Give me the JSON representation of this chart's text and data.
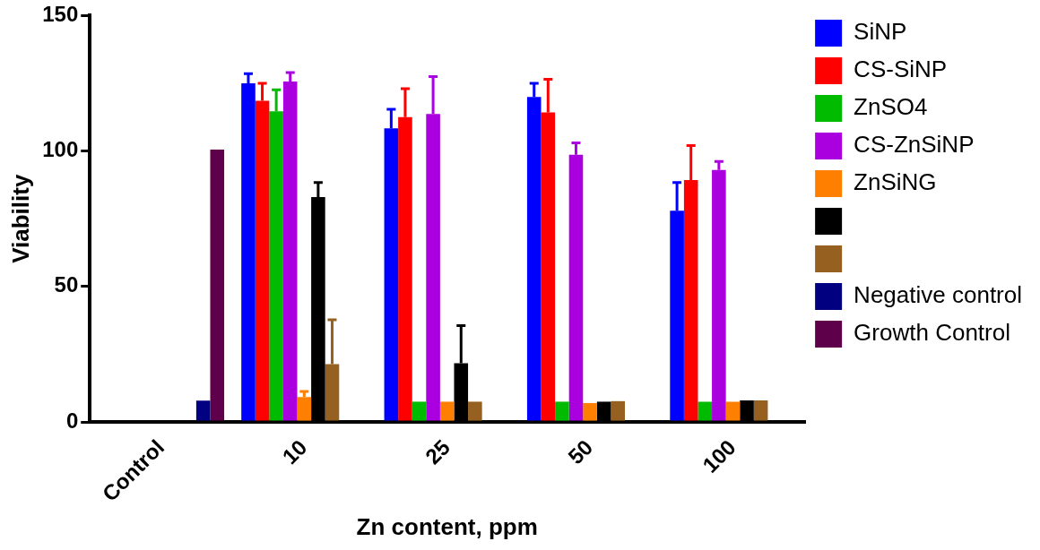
{
  "chart_data": {
    "type": "bar",
    "xlabel": "Zn content, ppm",
    "ylabel": "Viability",
    "categories": [
      "Control",
      "10",
      "25",
      "50",
      "100"
    ],
    "ylim": [
      0,
      150
    ],
    "yticks": [
      0,
      50,
      100,
      150
    ],
    "grid": false,
    "legend": "right",
    "series": [
      {
        "name": "SiNP",
        "color": "#0000ff",
        "values": [
          null,
          125,
          108.4,
          120,
          78
        ],
        "errors": [
          null,
          [
            125,
            128.6
          ],
          [
            108.4,
            115.4
          ],
          [
            120,
            125
          ],
          [
            78,
            88.4
          ]
        ]
      },
      {
        "name": "CS-SiNP",
        "color": "#ff0000",
        "values": [
          null,
          118.6,
          112.5,
          114.3,
          89.3
        ],
        "errors": [
          null,
          [
            118.6,
            125
          ],
          [
            112.5,
            123
          ],
          [
            114.3,
            126.5
          ],
          [
            89.3,
            102
          ]
        ]
      },
      {
        "name": "ZnSO4",
        "color": "#00bb00",
        "values": [
          null,
          114.7,
          7.5,
          7.5,
          7.5
        ],
        "errors": [
          null,
          [
            114.7,
            122.6
          ],
          null,
          null,
          null
        ]
      },
      {
        "name": "CS-ZnSiNP",
        "color": "#aa00e0",
        "values": [
          null,
          125.7,
          113.7,
          98.6,
          93
        ],
        "errors": [
          null,
          [
            125.7,
            129
          ],
          [
            113.7,
            127.5
          ],
          [
            98.6,
            103
          ],
          [
            93,
            96.2
          ]
        ]
      },
      {
        "name": "ZnSiNG",
        "color": "#ff8000",
        "values": [
          null,
          9.2,
          7.5,
          7,
          7.5
        ],
        "errors": [
          null,
          [
            9.2,
            11.3
          ],
          null,
          null,
          null
        ]
      },
      {
        "color": "#000000",
        "values": [
          null,
          83,
          21.7,
          7.5,
          8
        ],
        "errors": [
          null,
          [
            83,
            88.4
          ],
          [
            21.7,
            35.6
          ],
          null,
          null
        ]
      },
      {
        "color": "#956020",
        "values": [
          null,
          21.4,
          7.5,
          7.7,
          8
        ],
        "errors": [
          null,
          [
            21.4,
            37.7
          ],
          null,
          null,
          null
        ]
      },
      {
        "name": "Negative control",
        "color": "#000080",
        "values": [
          7.9,
          null,
          null,
          null,
          null
        ]
      },
      {
        "name": "Growth Control",
        "color": "#5e004a",
        "values": [
          100.5,
          null,
          null,
          null,
          null
        ]
      }
    ]
  }
}
